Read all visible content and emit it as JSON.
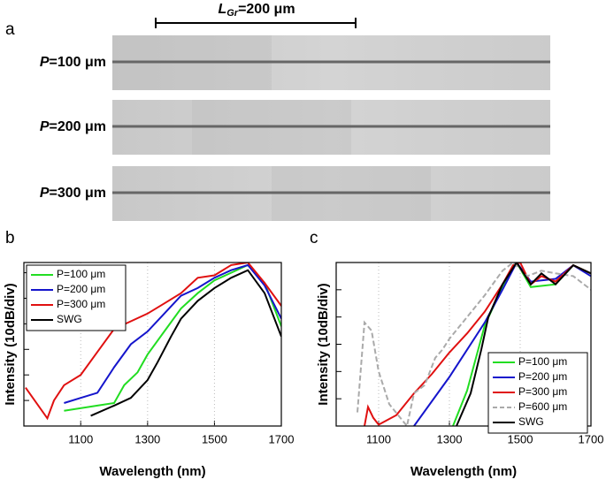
{
  "panel_a": {
    "label": "a",
    "scale_bar": {
      "var": "L",
      "sub": "Gr",
      "text": "=200 μm"
    },
    "images": [
      {
        "var": "P",
        "text": "=100 μm"
      },
      {
        "var": "P",
        "text": "=200 μm"
      },
      {
        "var": "P",
        "text": "=300 μm"
      }
    ]
  },
  "chart_data": [
    {
      "type": "line",
      "label": "b",
      "x_label": "Wavelength (nm)",
      "y_label": "Intensity (10dB/div)",
      "xlim": [
        930,
        1700
      ],
      "xticks": [
        1100,
        1300,
        1500,
        1700
      ],
      "ylim": [
        0,
        6.4
      ],
      "yticks": [
        0,
        1,
        2,
        3,
        4,
        5,
        6
      ],
      "legend": "top-left",
      "series": [
        {
          "name": "P=100 μm",
          "color": "#22dd22",
          "dash": false,
          "x": [
            1050,
            1150,
            1200,
            1230,
            1270,
            1300,
            1350,
            1400,
            1450,
            1500,
            1550,
            1600,
            1650,
            1700
          ],
          "values": [
            0.6,
            0.8,
            0.9,
            1.6,
            2.1,
            2.8,
            3.7,
            4.6,
            5.2,
            5.7,
            6.0,
            6.3,
            5.6,
            3.9
          ]
        },
        {
          "name": "P=200 μm",
          "color": "#1515cc",
          "dash": false,
          "x": [
            1050,
            1100,
            1150,
            1200,
            1250,
            1300,
            1350,
            1400,
            1450,
            1500,
            1550,
            1600,
            1650,
            1700
          ],
          "values": [
            0.9,
            1.1,
            1.3,
            2.3,
            3.2,
            3.7,
            4.4,
            5.1,
            5.4,
            5.8,
            6.1,
            6.3,
            5.5,
            4.2
          ]
        },
        {
          "name": "P=300 μm",
          "color": "#e01010",
          "dash": false,
          "x": [
            935,
            1000,
            1020,
            1050,
            1100,
            1150,
            1200,
            1250,
            1300,
            1350,
            1400,
            1450,
            1500,
            1550,
            1600,
            1650,
            1700
          ],
          "values": [
            1.5,
            0.3,
            1.0,
            1.6,
            2.0,
            2.9,
            3.8,
            4.1,
            4.4,
            4.8,
            5.2,
            5.8,
            5.9,
            6.3,
            6.4,
            5.6,
            4.7
          ]
        },
        {
          "name": "SWG",
          "color": "#000000",
          "dash": false,
          "x": [
            1130,
            1200,
            1250,
            1300,
            1330,
            1370,
            1400,
            1450,
            1500,
            1550,
            1600,
            1650,
            1700
          ],
          "values": [
            0.4,
            0.8,
            1.1,
            1.8,
            2.5,
            3.5,
            4.2,
            4.9,
            5.4,
            5.8,
            6.1,
            5.2,
            3.5
          ]
        }
      ]
    },
    {
      "type": "line",
      "label": "c",
      "x_label": "Wavelength (nm)",
      "y_label": "Intensity (10dB/div)",
      "xlim": [
        980,
        1700
      ],
      "xticks": [
        1100,
        1300,
        1500,
        1700
      ],
      "ylim": [
        0,
        6
      ],
      "yticks": [
        0,
        1,
        2,
        3,
        4,
        5,
        6
      ],
      "legend": "bottom-right",
      "series": [
        {
          "name": "P=100 μm",
          "color": "#22dd22",
          "dash": false,
          "x": [
            1310,
            1350,
            1400,
            1450,
            1490,
            1530,
            1600,
            1650,
            1700
          ],
          "values": [
            0,
            1.3,
            3.7,
            5.1,
            6.0,
            5.1,
            5.2,
            5.9,
            5.6
          ]
        },
        {
          "name": "P=200 μm",
          "color": "#1515cc",
          "dash": false,
          "x": [
            1200,
            1300,
            1400,
            1450,
            1490,
            1530,
            1600,
            1650,
            1700
          ],
          "values": [
            0,
            1.8,
            3.8,
            5.0,
            6.0,
            5.3,
            5.4,
            5.9,
            5.5
          ]
        },
        {
          "name": "P=300 μm",
          "color": "#e01010",
          "dash": false,
          "x": [
            1060,
            1070,
            1085,
            1100,
            1150,
            1200,
            1250,
            1300,
            1350,
            1400,
            1450,
            1480,
            1500,
            1530,
            1560,
            1600,
            1650,
            1700
          ],
          "values": [
            0,
            0.7,
            0.3,
            0.05,
            0.4,
            1.2,
            1.9,
            2.7,
            3.4,
            4.2,
            5.2,
            5.9,
            6.0,
            5.2,
            5.5,
            5.3,
            5.9,
            5.6
          ]
        },
        {
          "name": "P=600 μm",
          "color": "#aaaaaa",
          "dash": true,
          "x": [
            1040,
            1060,
            1080,
            1100,
            1130,
            1180,
            1200,
            1230,
            1260,
            1280,
            1300,
            1350,
            1400,
            1450,
            1480,
            1520,
            1560,
            1600,
            1650,
            1700
          ],
          "values": [
            0.5,
            3.8,
            3.5,
            2.0,
            0.8,
            0,
            1.2,
            1.5,
            2.5,
            2.8,
            3.2,
            4.0,
            4.8,
            5.7,
            6.0,
            5.5,
            5.7,
            5.6,
            5.5,
            5.0
          ]
        },
        {
          "name": "SWG",
          "color": "#000000",
          "dash": false,
          "x": [
            1320,
            1360,
            1390,
            1410,
            1450,
            1490,
            1530,
            1560,
            1600,
            1650,
            1700
          ],
          "values": [
            0,
            1.2,
            2.8,
            4.0,
            5.2,
            6.0,
            5.2,
            5.6,
            5.2,
            5.9,
            5.6
          ]
        }
      ]
    }
  ]
}
